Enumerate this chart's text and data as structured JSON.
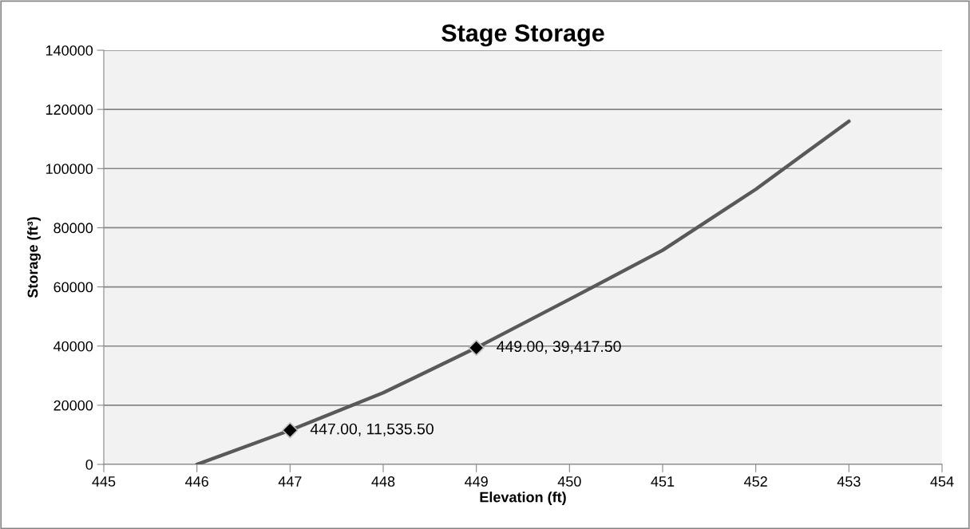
{
  "chart_data": {
    "type": "line",
    "title": "Stage Storage",
    "xlabel": "Elevation (ft)",
    "ylabel": "Storage (ft³)",
    "xlim": [
      445,
      454
    ],
    "xticks": [
      445,
      446,
      447,
      448,
      449,
      450,
      451,
      452,
      453,
      454
    ],
    "ylim": [
      0,
      140000
    ],
    "yticks": [
      0,
      20000,
      40000,
      60000,
      80000,
      100000,
      120000,
      140000
    ],
    "grid": "y",
    "legend": false,
    "series": [
      {
        "color": "#595959",
        "marker": "none",
        "x": [
          446,
          447,
          448,
          449,
          450,
          451,
          452,
          453
        ],
        "values": [
          0,
          11535.5,
          24200,
          39417.5,
          55800,
          72400,
          93000,
          116000
        ]
      },
      {
        "type": "scatter",
        "color": "#000000",
        "marker": "diamond",
        "x": [
          447,
          449
        ],
        "values": [
          11535.5,
          39417.5
        ]
      }
    ],
    "annotations": [
      {
        "text": "447.00, 11,535.50",
        "x": 447,
        "y": 11535.5
      },
      {
        "text": "449.00, 39,417.50",
        "x": 449,
        "y": 39417.5
      }
    ]
  }
}
